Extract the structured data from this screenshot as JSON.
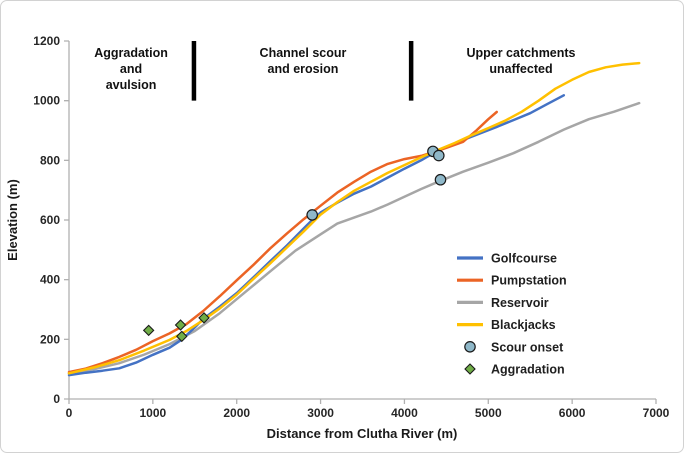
{
  "chart_data": {
    "type": "line",
    "title": "",
    "xlabel": "Distance from Clutha River (m)",
    "ylabel": "Elevation (m)",
    "xlim": [
      0,
      7000
    ],
    "ylim": [
      0,
      1200
    ],
    "xticks": [
      0,
      1000,
      2000,
      3000,
      4000,
      5000,
      6000,
      7000
    ],
    "yticks": [
      0,
      200,
      400,
      600,
      800,
      1000,
      1200
    ],
    "grid": false,
    "legend_position": "inside-right",
    "axis_color": "#b0b0b0",
    "series": [
      {
        "name": "Golfcourse",
        "color": "#4472C4",
        "points": [
          [
            0,
            80
          ],
          [
            200,
            88
          ],
          [
            400,
            95
          ],
          [
            600,
            103
          ],
          [
            800,
            122
          ],
          [
            1000,
            148
          ],
          [
            1200,
            172
          ],
          [
            1350,
            200
          ],
          [
            1500,
            240
          ],
          [
            1600,
            268
          ],
          [
            1800,
            310
          ],
          [
            2000,
            355
          ],
          [
            2200,
            408
          ],
          [
            2400,
            462
          ],
          [
            2600,
            515
          ],
          [
            2800,
            572
          ],
          [
            2900,
            600
          ],
          [
            3000,
            625
          ],
          [
            3200,
            658
          ],
          [
            3400,
            688
          ],
          [
            3600,
            712
          ],
          [
            3800,
            742
          ],
          [
            4000,
            772
          ],
          [
            4200,
            800
          ],
          [
            4350,
            825
          ],
          [
            4500,
            845
          ],
          [
            4700,
            868
          ],
          [
            4900,
            890
          ],
          [
            5100,
            912
          ],
          [
            5300,
            935
          ],
          [
            5500,
            958
          ],
          [
            5700,
            988
          ],
          [
            5900,
            1018
          ]
        ]
      },
      {
        "name": "Pumpstation",
        "color": "#EB6425",
        "points": [
          [
            0,
            90
          ],
          [
            200,
            102
          ],
          [
            400,
            120
          ],
          [
            600,
            141
          ],
          [
            800,
            165
          ],
          [
            1000,
            194
          ],
          [
            1200,
            220
          ],
          [
            1400,
            251
          ],
          [
            1600,
            295
          ],
          [
            1800,
            345
          ],
          [
            2000,
            398
          ],
          [
            2200,
            450
          ],
          [
            2400,
            505
          ],
          [
            2600,
            555
          ],
          [
            2800,
            603
          ],
          [
            3000,
            648
          ],
          [
            3200,
            692
          ],
          [
            3400,
            728
          ],
          [
            3600,
            762
          ],
          [
            3800,
            788
          ],
          [
            4000,
            804
          ],
          [
            4200,
            815
          ],
          [
            4350,
            828
          ],
          [
            4500,
            842
          ],
          [
            4700,
            862
          ],
          [
            4850,
            898
          ],
          [
            5000,
            938
          ],
          [
            5100,
            962
          ]
        ]
      },
      {
        "name": "Reservoir",
        "color": "#A6A6A6",
        "points": [
          [
            0,
            85
          ],
          [
            300,
            100
          ],
          [
            600,
            120
          ],
          [
            900,
            149
          ],
          [
            1200,
            184
          ],
          [
            1500,
            228
          ],
          [
            1800,
            288
          ],
          [
            2100,
            358
          ],
          [
            2400,
            428
          ],
          [
            2700,
            497
          ],
          [
            3000,
            552
          ],
          [
            3200,
            588
          ],
          [
            3400,
            608
          ],
          [
            3600,
            628
          ],
          [
            3800,
            652
          ],
          [
            4000,
            678
          ],
          [
            4200,
            704
          ],
          [
            4400,
            728
          ],
          [
            4700,
            762
          ],
          [
            5000,
            792
          ],
          [
            5300,
            824
          ],
          [
            5600,
            862
          ],
          [
            5900,
            903
          ],
          [
            6200,
            938
          ],
          [
            6500,
            963
          ],
          [
            6800,
            992
          ]
        ]
      },
      {
        "name": "Blackjacks",
        "color": "#FFC000",
        "points": [
          [
            0,
            86
          ],
          [
            300,
            106
          ],
          [
            600,
            130
          ],
          [
            900,
            163
          ],
          [
            1200,
            198
          ],
          [
            1400,
            228
          ],
          [
            1600,
            264
          ],
          [
            1800,
            304
          ],
          [
            2000,
            350
          ],
          [
            2200,
            403
          ],
          [
            2400,
            455
          ],
          [
            2600,
            508
          ],
          [
            2800,
            562
          ],
          [
            3000,
            618
          ],
          [
            3200,
            660
          ],
          [
            3400,
            698
          ],
          [
            3600,
            728
          ],
          [
            3800,
            758
          ],
          [
            4000,
            784
          ],
          [
            4200,
            810
          ],
          [
            4400,
            835
          ],
          [
            4600,
            858
          ],
          [
            4800,
            884
          ],
          [
            5000,
            908
          ],
          [
            5200,
            933
          ],
          [
            5400,
            963
          ],
          [
            5600,
            1000
          ],
          [
            5800,
            1040
          ],
          [
            6000,
            1070
          ],
          [
            6200,
            1096
          ],
          [
            6400,
            1112
          ],
          [
            6600,
            1121
          ],
          [
            6800,
            1126
          ]
        ]
      }
    ],
    "draw_order": [
      2,
      0,
      1,
      3
    ],
    "markers": [
      {
        "name": "Scour onset",
        "shape": "circle",
        "fill": "#8FB8C9",
        "stroke": "#1a1a1a",
        "points": [
          [
            2900,
            617
          ],
          [
            4340,
            830
          ],
          [
            4410,
            816
          ],
          [
            4430,
            735
          ]
        ]
      },
      {
        "name": "Aggradation",
        "shape": "diamond",
        "fill": "#70AD47",
        "stroke": "#1a1a1a",
        "points": [
          [
            950,
            230
          ],
          [
            1330,
            248
          ],
          [
            1345,
            210
          ],
          [
            1610,
            272
          ]
        ]
      }
    ],
    "zone_dividers": [
      {
        "x": 1490,
        "from": 1200,
        "to": 1000
      },
      {
        "x": 4080,
        "from": 1200,
        "to": 1000
      }
    ],
    "annotations": [
      {
        "x": 740,
        "lines": [
          "Aggradation",
          "and",
          "avulsion"
        ]
      },
      {
        "x": 2790,
        "lines": [
          "Channel scour",
          "and erosion"
        ]
      },
      {
        "x": 5390,
        "lines": [
          "Upper catchments",
          "unaffected"
        ]
      }
    ]
  }
}
